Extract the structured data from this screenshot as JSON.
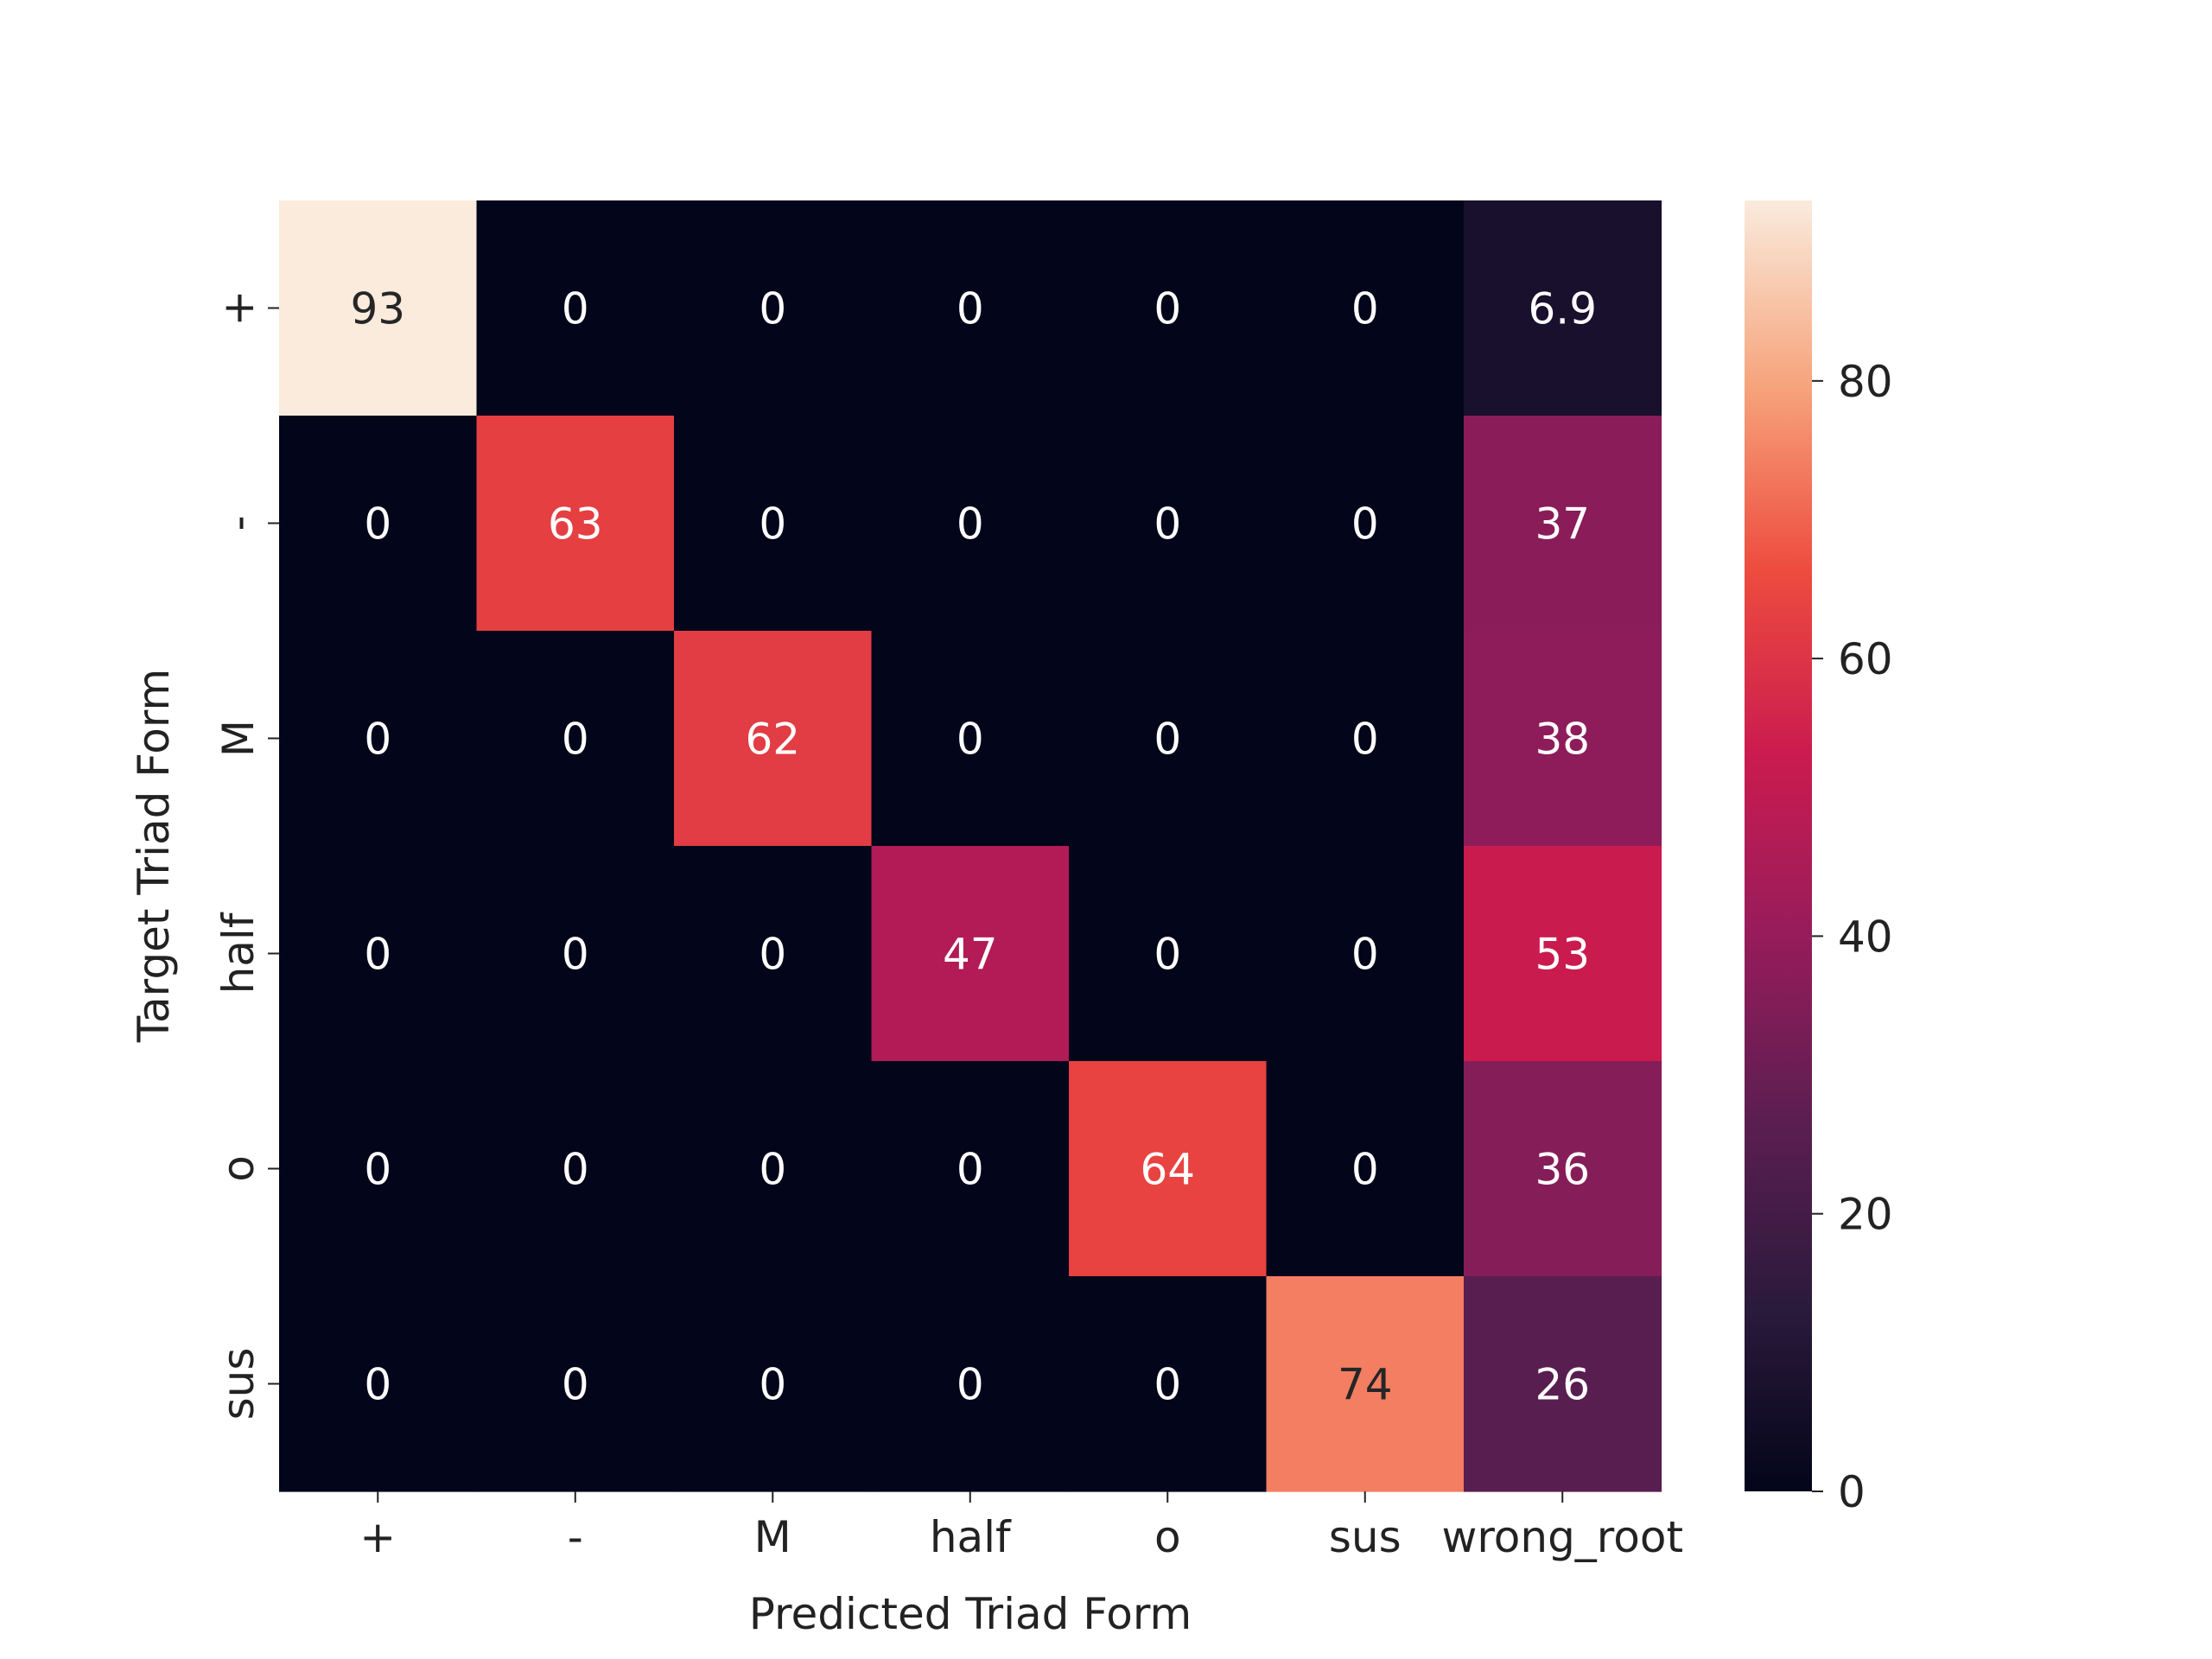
{
  "chart_data": {
    "type": "heatmap",
    "title": "",
    "xlabel": "Predicted Triad Form",
    "ylabel": "Target Triad Form",
    "x_categories": [
      "+",
      "-",
      "M",
      "half",
      "o",
      "sus",
      "wrong_root"
    ],
    "y_categories": [
      "+",
      "-",
      "M",
      "half",
      "o",
      "sus"
    ],
    "values": [
      [
        93,
        0,
        0,
        0,
        0,
        0,
        6.9
      ],
      [
        0,
        63,
        0,
        0,
        0,
        0,
        37
      ],
      [
        0,
        0,
        62,
        0,
        0,
        0,
        38
      ],
      [
        0,
        0,
        0,
        47,
        0,
        0,
        53
      ],
      [
        0,
        0,
        0,
        0,
        64,
        0,
        36
      ],
      [
        0,
        0,
        0,
        0,
        0,
        74,
        26
      ]
    ],
    "annotations": [
      [
        "93",
        "0",
        "0",
        "0",
        "0",
        "0",
        "6.9"
      ],
      [
        "0",
        "63",
        "0",
        "0",
        "0",
        "0",
        "37"
      ],
      [
        "0",
        "0",
        "62",
        "0",
        "0",
        "0",
        "38"
      ],
      [
        "0",
        "0",
        "0",
        "47",
        "0",
        "0",
        "53"
      ],
      [
        "0",
        "0",
        "0",
        "0",
        "64",
        "0",
        "36"
      ],
      [
        "0",
        "0",
        "0",
        "0",
        "0",
        "74",
        "26"
      ]
    ],
    "colorbar": {
      "range": [
        0,
        93
      ],
      "ticks": [
        "0",
        "20",
        "40",
        "60",
        "80"
      ],
      "tick_values": [
        0,
        20,
        40,
        60,
        80
      ],
      "colormap": "rocket",
      "colormap_stops": [
        "#03051a",
        "#2b1a3c",
        "#5b1e51",
        "#961c5b",
        "#cb1b4f",
        "#ee4c3e",
        "#f6a47c",
        "#faebdd"
      ]
    },
    "grid": false,
    "legend": "none"
  }
}
